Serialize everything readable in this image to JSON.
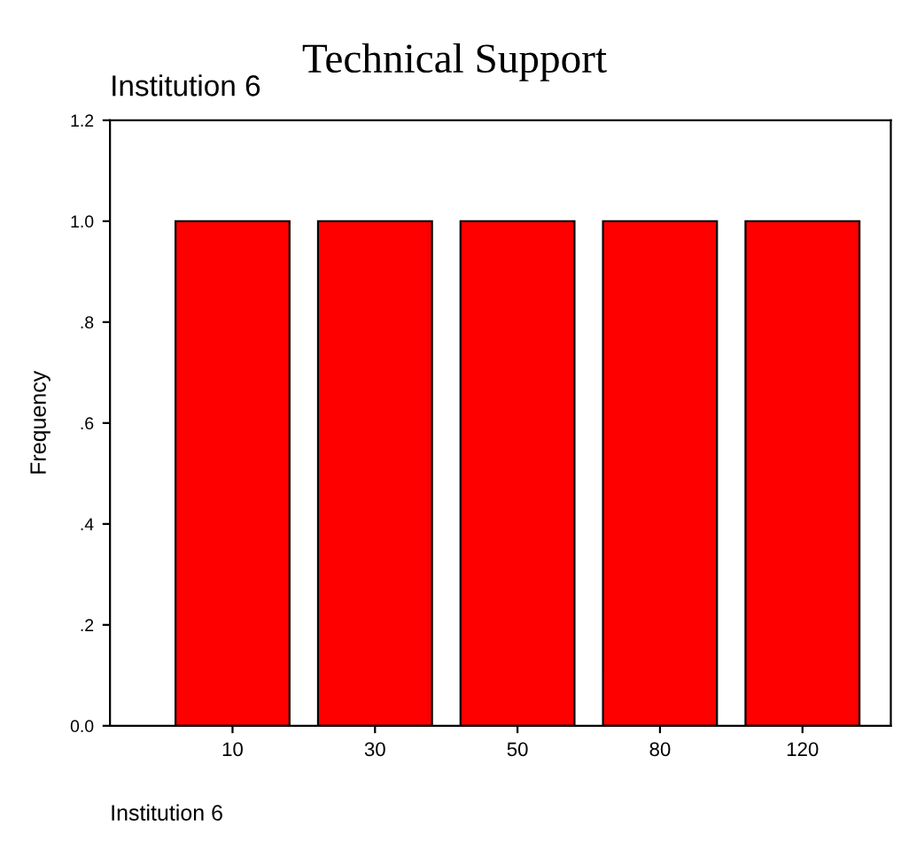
{
  "chart_data": {
    "type": "bar",
    "title": "Technical Support",
    "subtitle": "Institution 6",
    "xlabel": "Institution 6",
    "ylabel": "Frequency",
    "categories": [
      "10",
      "30",
      "50",
      "80",
      "120"
    ],
    "values": [
      1.0,
      1.0,
      1.0,
      1.0,
      1.0
    ],
    "color": "#ff0000",
    "ylim": [
      0,
      1.2
    ],
    "yticks": [
      {
        "value": 0,
        "label": "0.0"
      },
      {
        "value": 0.2,
        "label": ".2"
      },
      {
        "value": 0.4,
        "label": ".4"
      },
      {
        "value": 0.6,
        "label": ".6"
      },
      {
        "value": 0.8,
        "label": ".8"
      },
      {
        "value": 1.0,
        "label": "1.0"
      },
      {
        "value": 1.2,
        "label": "1.2"
      }
    ],
    "grid": false
  }
}
